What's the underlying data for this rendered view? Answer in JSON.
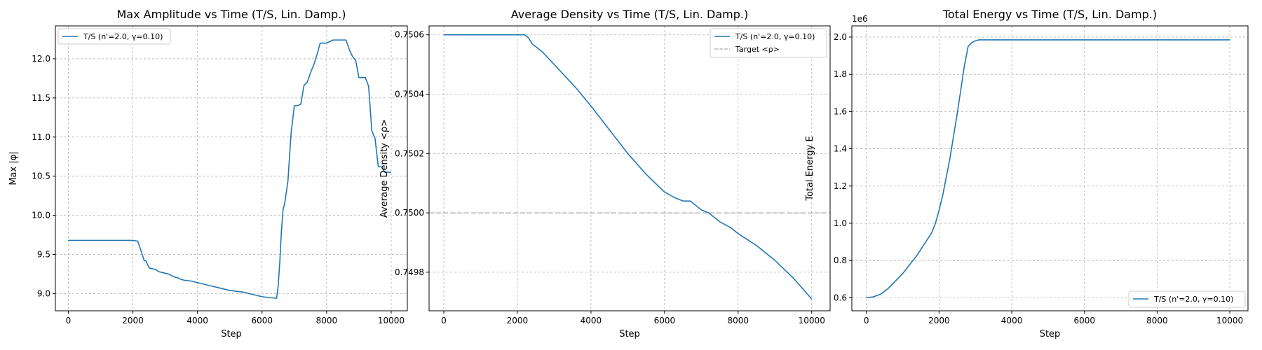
{
  "chart_data": [
    {
      "type": "line",
      "title": "Max Amplitude vs Time (T/S, Lin. Damp.)",
      "xlabel": "Step",
      "ylabel": "Max |φ|",
      "xlim": [
        -400,
        10500
      ],
      "ylim": [
        8.78,
        12.42
      ],
      "xticks": [
        0,
        2000,
        4000,
        6000,
        8000,
        10000
      ],
      "xtick_labels": [
        "0",
        "2000",
        "4000",
        "6000",
        "8000",
        "10000"
      ],
      "yticks": [
        9.0,
        9.5,
        10.0,
        10.5,
        11.0,
        11.5,
        12.0
      ],
      "ytick_labels": [
        "9.0",
        "9.5",
        "10.0",
        "10.5",
        "11.0",
        "11.5",
        "12.0"
      ],
      "grid": true,
      "legend": "upper left",
      "series": [
        {
          "name": "T/S (n'=2.0, γ=0.10)",
          "color": "#1f77b4",
          "style": "solid",
          "x": [
            0,
            500,
            1000,
            1500,
            2000,
            2150,
            2250,
            2350,
            2400,
            2500,
            2550,
            2700,
            2800,
            2900,
            3000,
            3100,
            3200,
            3300,
            3400,
            3500,
            3600,
            3800,
            4000,
            4200,
            4400,
            4600,
            4800,
            5000,
            5200,
            5400,
            5600,
            5800,
            6000,
            6200,
            6450,
            6500,
            6550,
            6600,
            6650,
            6700,
            6800,
            6900,
            7000,
            7100,
            7200,
            7300,
            7400,
            7500,
            7600,
            7700,
            7800,
            7900,
            8000,
            8100,
            8200,
            8300,
            8400,
            8500,
            8600,
            8700,
            8800,
            8900,
            9000,
            9100,
            9200,
            9300,
            9400,
            9500,
            9600,
            9700,
            9800,
            9900,
            10000
          ],
          "y": [
            9.68,
            9.68,
            9.68,
            9.68,
            9.68,
            9.67,
            9.55,
            9.42,
            9.42,
            9.33,
            9.32,
            9.31,
            9.28,
            9.27,
            9.26,
            9.25,
            9.23,
            9.21,
            9.2,
            9.18,
            9.17,
            9.16,
            9.14,
            9.12,
            9.1,
            9.08,
            9.06,
            9.04,
            9.03,
            9.02,
            9.0,
            8.98,
            8.96,
            8.95,
            8.94,
            9.1,
            9.4,
            9.8,
            10.07,
            10.15,
            10.43,
            11.05,
            11.4,
            11.4,
            11.42,
            11.66,
            11.7,
            11.82,
            11.92,
            12.05,
            12.2,
            12.2,
            12.2,
            12.22,
            12.24,
            12.24,
            12.24,
            12.24,
            12.24,
            12.12,
            12.03,
            11.98,
            11.76,
            11.76,
            11.76,
            11.65,
            11.08,
            10.98,
            10.62,
            10.62,
            10.55,
            10.55,
            10.55
          ]
        }
      ]
    },
    {
      "type": "line",
      "title": "Average Density vs Time (T/S, Lin. Damp.)",
      "xlabel": "Step",
      "ylabel": "Average Density <ρ>",
      "xlim": [
        -400,
        10500
      ],
      "ylim": [
        0.74967,
        0.75063
      ],
      "xticks": [
        0,
        2000,
        4000,
        6000,
        8000,
        10000
      ],
      "xtick_labels": [
        "0",
        "2000",
        "4000",
        "6000",
        "8000",
        "10000"
      ],
      "yticks": [
        0.7498,
        0.75,
        0.7502,
        0.7504,
        0.7506
      ],
      "ytick_labels": [
        "0.7498",
        "0.7500",
        "0.7502",
        "0.7504",
        "0.7506"
      ],
      "grid": true,
      "legend": "upper right",
      "series": [
        {
          "name": "T/S (n'=2.0, γ=0.10)",
          "color": "#1f77b4",
          "style": "solid",
          "x": [
            0,
            1000,
            2000,
            2200,
            2300,
            2400,
            2500,
            2700,
            3000,
            3300,
            3600,
            4000,
            4500,
            5000,
            5500,
            6000,
            6300,
            6500,
            6600,
            6700,
            6800,
            7000,
            7200,
            7500,
            7800,
            8000,
            8500,
            9000,
            9500,
            10000
          ],
          "y": [
            0.7506,
            0.7506,
            0.7506,
            0.7506,
            0.75059,
            0.75057,
            0.75056,
            0.75054,
            0.7505,
            0.75046,
            0.75042,
            0.75036,
            0.75028,
            0.7502,
            0.75013,
            0.75007,
            0.75005,
            0.75004,
            0.75004,
            0.75004,
            0.75003,
            0.75001,
            0.75,
            0.74997,
            0.74995,
            0.74993,
            0.74989,
            0.74984,
            0.74978,
            0.74971
          ]
        },
        {
          "name": "Target <ρ>",
          "color": "#aaaaaa",
          "style": "dashed",
          "x": [
            -400,
            10500
          ],
          "y": [
            0.75,
            0.75
          ]
        }
      ]
    },
    {
      "type": "line",
      "title": "Total Energy vs Time (T/S, Lin. Damp.)",
      "xlabel": "Step",
      "ylabel": "Total Energy E",
      "offset_text": "1e6",
      "xlim": [
        -400,
        10500
      ],
      "ylim": [
        0.53,
        2.06
      ],
      "xticks": [
        0,
        2000,
        4000,
        6000,
        8000,
        10000
      ],
      "xtick_labels": [
        "0",
        "2000",
        "4000",
        "6000",
        "8000",
        "10000"
      ],
      "yticks": [
        0.6,
        0.8,
        1.0,
        1.2,
        1.4,
        1.6,
        1.8,
        2.0
      ],
      "ytick_labels": [
        "0.6",
        "0.8",
        "1.0",
        "1.2",
        "1.4",
        "1.6",
        "1.8",
        "2.0"
      ],
      "grid": true,
      "legend": "lower right",
      "series": [
        {
          "name": "T/S (n'=2.0, γ=0.10)",
          "color": "#1f77b4",
          "style": "solid",
          "x": [
            0,
            200,
            400,
            600,
            800,
            1000,
            1200,
            1400,
            1600,
            1800,
            1900,
            2000,
            2100,
            2200,
            2300,
            2400,
            2500,
            2600,
            2700,
            2800,
            2900,
            3000,
            3100,
            3200,
            3500,
            4000,
            5000,
            6000,
            7000,
            8000,
            9000,
            10000
          ],
          "y": [
            0.6,
            0.605,
            0.62,
            0.65,
            0.69,
            0.73,
            0.78,
            0.83,
            0.89,
            0.95,
            1.0,
            1.07,
            1.15,
            1.25,
            1.35,
            1.47,
            1.59,
            1.72,
            1.85,
            1.95,
            1.97,
            1.98,
            1.985,
            1.985,
            1.985,
            1.985,
            1.985,
            1.985,
            1.985,
            1.985,
            1.985,
            1.985
          ]
        }
      ]
    }
  ]
}
